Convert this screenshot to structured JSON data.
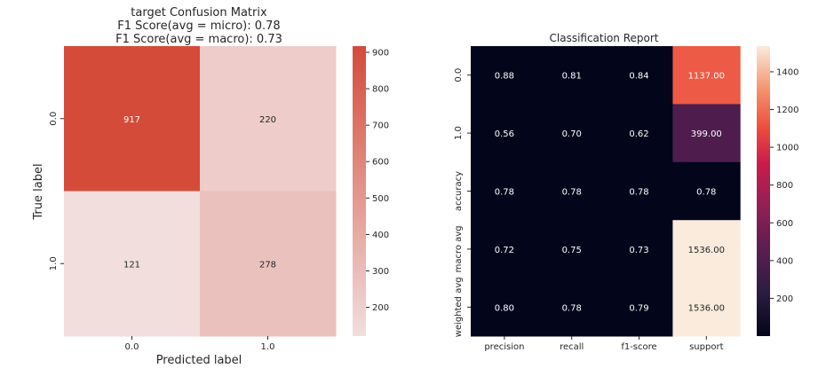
{
  "chart_data": [
    {
      "type": "heatmap",
      "title_lines": [
        "target Confusion Matrix",
        "F1 Score(avg = micro): 0.78",
        "F1 Score(avg = macro): 0.73"
      ],
      "xlabel": "Predicted label",
      "ylabel": "True label",
      "x_categories": [
        "0.0",
        "1.0"
      ],
      "y_categories": [
        "0.0",
        "1.0"
      ],
      "values": [
        [
          917,
          220
        ],
        [
          121,
          278
        ]
      ],
      "value_labels": [
        [
          "917",
          "220"
        ],
        [
          "121",
          "278"
        ]
      ],
      "colorbar": {
        "range": [
          121,
          917
        ],
        "ticks": [
          "200",
          "300",
          "400",
          "500",
          "600",
          "700",
          "800",
          "900"
        ],
        "tick_values": [
          200,
          300,
          400,
          500,
          600,
          700,
          800,
          900
        ]
      },
      "colors": {
        "low": "#f1dedd",
        "high": "#d44b3a"
      }
    },
    {
      "type": "heatmap",
      "title": "Classification Report",
      "x_categories": [
        "precision",
        "recall",
        "f1-score",
        "support"
      ],
      "y_categories": [
        "0.0",
        "1.0",
        "accuracy",
        "macro avg",
        "weighted avg"
      ],
      "values": [
        [
          0.88,
          0.81,
          0.84,
          1137.0
        ],
        [
          0.56,
          0.7,
          0.62,
          399.0
        ],
        [
          0.78,
          0.78,
          0.78,
          0.78
        ],
        [
          0.72,
          0.75,
          0.73,
          1536.0
        ],
        [
          0.8,
          0.78,
          0.79,
          1536.0
        ]
      ],
      "value_labels": [
        [
          "0.88",
          "0.81",
          "0.84",
          "1137.00"
        ],
        [
          "0.56",
          "0.70",
          "0.62",
          "399.00"
        ],
        [
          "0.78",
          "0.78",
          "0.78",
          "0.78"
        ],
        [
          "0.72",
          "0.75",
          "0.73",
          "1536.00"
        ],
        [
          "0.80",
          "0.78",
          "0.79",
          "1536.00"
        ]
      ],
      "colorbar": {
        "range": [
          0,
          1536
        ],
        "ticks": [
          "200",
          "400",
          "600",
          "800",
          "1000",
          "1200",
          "1400"
        ],
        "tick_values": [
          200,
          400,
          600,
          800,
          1000,
          1200,
          1400
        ]
      },
      "colormap": "rocket"
    }
  ]
}
